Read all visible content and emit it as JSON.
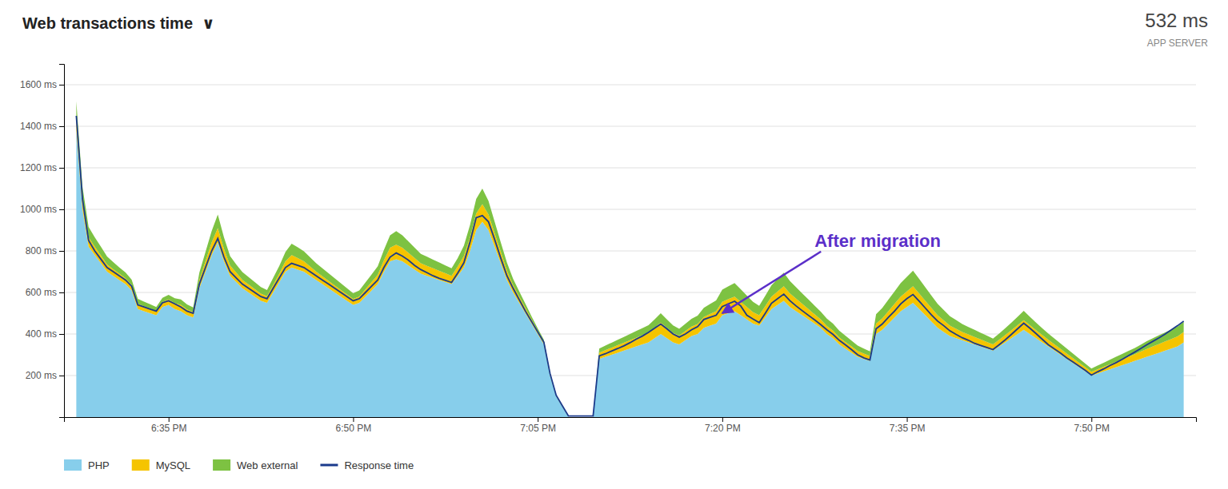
{
  "chart_data": {
    "type": "area",
    "title": "Web transactions time  ∨",
    "subtitle": [
      "532 ms",
      "APP SERVER"
    ],
    "stacked": true,
    "grid": true,
    "legend": "lower left",
    "xlim": [
      -2,
      182
    ],
    "xticks": [
      {
        "value": 15,
        "label": "6:35 PM"
      },
      {
        "value": 45,
        "label": "6:50 PM"
      },
      {
        "value": 75,
        "label": "7:05 PM"
      },
      {
        "value": 105,
        "label": "7:20 PM"
      },
      {
        "value": 135,
        "label": "7:35 PM"
      },
      {
        "value": 165,
        "label": "7:50 PM"
      }
    ],
    "ylim": [
      0,
      1700
    ],
    "yticks": [
      {
        "value": 200,
        "label": "200 ms"
      },
      {
        "value": 400,
        "label": "400 ms"
      },
      {
        "value": 600,
        "label": "600 ms"
      },
      {
        "value": 800,
        "label": "800 ms"
      },
      {
        "value": 1000,
        "label": "1000 ms"
      },
      {
        "value": 1200,
        "label": "1200 ms"
      },
      {
        "value": 1400,
        "label": "1400 ms"
      },
      {
        "value": 1600,
        "label": "1600 ms"
      }
    ],
    "annotations": [
      {
        "text": "After migration",
        "x": 105,
        "y": 500,
        "text_x": 120,
        "text_y": 820,
        "color": "#5b2fc9"
      }
    ],
    "x": [
      0,
      1,
      2,
      3,
      4,
      5,
      6,
      7,
      8,
      9,
      10,
      11,
      12,
      13,
      14,
      15,
      16,
      17,
      18,
      19,
      20,
      21,
      22,
      23,
      24,
      25,
      26,
      27,
      28,
      29,
      30,
      31,
      32,
      33,
      34,
      35,
      36,
      37,
      38,
      39,
      40,
      41,
      42,
      43,
      44,
      45,
      46,
      47,
      48,
      49,
      50,
      51,
      52,
      53,
      54,
      55,
      56,
      57,
      58,
      59,
      60,
      61,
      62,
      63,
      64,
      65,
      66,
      67,
      68,
      69,
      70,
      71,
      72,
      73,
      74,
      75,
      76,
      77,
      78,
      79,
      80,
      81,
      82,
      83,
      84,
      85,
      86,
      87,
      88,
      89,
      90,
      91,
      92,
      93,
      94,
      95,
      96,
      97,
      98,
      99,
      100,
      101,
      102,
      103,
      104,
      105,
      106,
      107,
      108,
      109,
      110,
      111,
      112,
      113,
      114,
      115,
      116,
      117,
      118,
      119,
      120,
      121,
      122,
      123,
      124,
      125,
      126,
      127,
      128,
      129,
      130,
      131,
      132,
      133,
      134,
      135,
      136,
      137,
      138,
      139,
      140,
      141,
      142,
      143,
      144,
      145,
      146,
      147,
      148,
      149,
      150,
      151,
      152,
      153,
      154,
      155,
      156,
      157,
      158,
      159,
      160,
      161,
      162,
      163,
      164,
      165,
      166,
      167,
      168,
      169,
      170,
      171,
      172,
      173,
      174,
      175,
      176,
      177,
      178,
      179,
      180
    ],
    "series": [
      {
        "name": "PHP",
        "type": "area",
        "color": "#87CEEB",
        "values": [
          1380,
          1000,
          820,
          780,
          740,
          700,
          680,
          660,
          640,
          610,
          520,
          510,
          500,
          490,
          530,
          540,
          520,
          510,
          490,
          480,
          620,
          700,
          780,
          840,
          750,
          680,
          650,
          620,
          600,
          580,
          560,
          550,
          600,
          650,
          700,
          720,
          710,
          700,
          680,
          660,
          640,
          620,
          600,
          580,
          560,
          540,
          550,
          580,
          610,
          640,
          700,
          750,
          760,
          750,
          730,
          710,
          690,
          680,
          670,
          660,
          650,
          640,
          680,
          720,
          800,
          900,
          940,
          900,
          820,
          740,
          660,
          600,
          550,
          500,
          450,
          400,
          350,
          200,
          100,
          50,
          0,
          0,
          0,
          0,
          0,
          280,
          290,
          300,
          310,
          320,
          330,
          340,
          350,
          360,
          380,
          400,
          380,
          360,
          350,
          370,
          390,
          400,
          430,
          440,
          450,
          490,
          500,
          510,
          490,
          470,
          450,
          440,
          480,
          520,
          540,
          560,
          530,
          510,
          490,
          470,
          450,
          430,
          400,
          380,
          350,
          330,
          310,
          290,
          280,
          270,
          400,
          420,
          450,
          480,
          510,
          530,
          550,
          520,
          490,
          460,
          430,
          410,
          390,
          380,
          370,
          360,
          350,
          340,
          330,
          320,
          340,
          360,
          380,
          400,
          420,
          400,
          380,
          360,
          340,
          320,
          300,
          280,
          260,
          240,
          220,
          200,
          210,
          220,
          230,
          240,
          250,
          260,
          270,
          280,
          290,
          300,
          310,
          320,
          330,
          340,
          360
        ]
      },
      {
        "name": "MySQL",
        "type": "area",
        "color": "#F5C400",
        "values": [
          60,
          50,
          45,
          40,
          38,
          35,
          32,
          30,
          28,
          26,
          25,
          24,
          23,
          22,
          24,
          26,
          28,
          30,
          28,
          26,
          40,
          50,
          60,
          70,
          60,
          50,
          45,
          40,
          38,
          36,
          34,
          32,
          36,
          40,
          50,
          60,
          55,
          50,
          45,
          40,
          38,
          36,
          34,
          32,
          30,
          28,
          30,
          35,
          40,
          45,
          55,
          65,
          70,
          65,
          60,
          55,
          50,
          48,
          46,
          44,
          42,
          40,
          45,
          55,
          65,
          80,
          85,
          75,
          65,
          55,
          45,
          35,
          30,
          25,
          20,
          15,
          12,
          8,
          5,
          2,
          0,
          0,
          0,
          0,
          0,
          30,
          32,
          34,
          36,
          38,
          40,
          42,
          44,
          46,
          50,
          55,
          50,
          45,
          42,
          44,
          46,
          48,
          52,
          56,
          60,
          65,
          68,
          70,
          65,
          60,
          55,
          50,
          55,
          60,
          65,
          70,
          65,
          60,
          55,
          50,
          45,
          40,
          38,
          36,
          34,
          32,
          30,
          28,
          26,
          24,
          50,
          55,
          60,
          65,
          70,
          75,
          80,
          75,
          70,
          65,
          60,
          55,
          50,
          45,
          40,
          38,
          36,
          34,
          32,
          30,
          32,
          35,
          38,
          42,
          46,
          42,
          38,
          35,
          32,
          30,
          28,
          26,
          24,
          22,
          20,
          18,
          20,
          22,
          24,
          26,
          28,
          30,
          32,
          35,
          38,
          40,
          42,
          44,
          46,
          48,
          50
        ]
      },
      {
        "name": "Web external",
        "type": "area",
        "color": "#7DC242",
        "values": [
          80,
          60,
          50,
          45,
          42,
          38,
          34,
          30,
          28,
          26,
          24,
          22,
          20,
          18,
          20,
          22,
          24,
          26,
          24,
          22,
          35,
          45,
          55,
          65,
          55,
          45,
          40,
          38,
          36,
          34,
          32,
          30,
          34,
          38,
          45,
          55,
          52,
          48,
          44,
          40,
          38,
          36,
          34,
          32,
          30,
          28,
          30,
          33,
          37,
          41,
          50,
          60,
          65,
          60,
          55,
          50,
          46,
          44,
          42,
          40,
          38,
          36,
          40,
          50,
          60,
          70,
          75,
          65,
          55,
          45,
          38,
          30,
          25,
          20,
          15,
          12,
          10,
          6,
          3,
          1,
          0,
          0,
          0,
          0,
          0,
          20,
          22,
          24,
          26,
          28,
          30,
          32,
          34,
          36,
          40,
          45,
          40,
          36,
          33,
          35,
          37,
          40,
          44,
          48,
          52,
          58,
          62,
          65,
          60,
          55,
          50,
          46,
          50,
          55,
          60,
          65,
          60,
          55,
          50,
          46,
          42,
          38,
          36,
          34,
          32,
          30,
          28,
          26,
          24,
          22,
          45,
          50,
          55,
          60,
          65,
          70,
          75,
          70,
          65,
          60,
          55,
          50,
          46,
          42,
          38,
          36,
          34,
          32,
          30,
          28,
          30,
          33,
          37,
          41,
          46,
          41,
          37,
          33,
          30,
          28,
          26,
          24,
          22,
          20,
          18,
          16,
          18,
          20,
          22,
          24,
          26,
          28,
          30,
          33,
          37,
          40,
          42,
          44,
          46,
          48,
          50
        ]
      },
      {
        "name": "Response time",
        "type": "line",
        "color": "#1a3a8c",
        "values": [
          1450,
          1050,
          850,
          800,
          760,
          720,
          700,
          680,
          660,
          630,
          540,
          530,
          520,
          510,
          550,
          560,
          545,
          530,
          510,
          500,
          640,
          720,
          800,
          860,
          770,
          700,
          670,
          640,
          620,
          600,
          580,
          570,
          620,
          670,
          720,
          740,
          730,
          720,
          700,
          680,
          660,
          640,
          620,
          600,
          580,
          560,
          570,
          600,
          630,
          660,
          720,
          770,
          790,
          775,
          755,
          730,
          710,
          695,
          680,
          668,
          658,
          648,
          693,
          743,
          843,
          960,
          970,
          940,
          855,
          765,
          680,
          620,
          565,
          510,
          460,
          410,
          360,
          210,
          105,
          55,
          5,
          5,
          5,
          5,
          5,
          295,
          305,
          318,
          330,
          343,
          358,
          375,
          390,
          408,
          428,
          448,
          425,
          400,
          385,
          400,
          420,
          435,
          470,
          480,
          490,
          532,
          545,
          558,
          535,
          490,
          472,
          455,
          500,
          548,
          570,
          592,
          560,
          535,
          512,
          490,
          468,
          445,
          420,
          398,
          370,
          348,
          325,
          300,
          285,
          275,
          425,
          448,
          480,
          510,
          545,
          570,
          590,
          558,
          525,
          492,
          462,
          440,
          415,
          398,
          382,
          370,
          355,
          345,
          335,
          325,
          348,
          372,
          398,
          425,
          452,
          428,
          402,
          375,
          348,
          328,
          308,
          285,
          265,
          245,
          225,
          202,
          218,
          232,
          248,
          262,
          278,
          295,
          312,
          330,
          348,
          365,
          382,
          400,
          420,
          440,
          462
        ]
      }
    ]
  }
}
